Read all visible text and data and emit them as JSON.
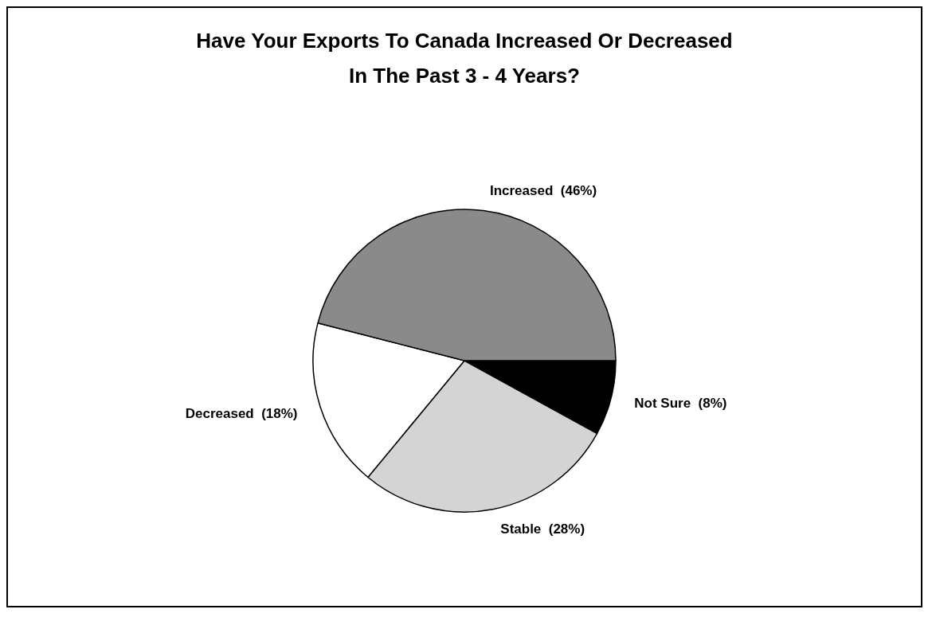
{
  "chart_data": {
    "type": "pie",
    "title": "Have Your Exports To Canada Increased Or Decreased\nIn The Past 3 - 4 Years?",
    "categories": [
      "Not Sure",
      "Stable",
      "Decreased",
      "Increased"
    ],
    "values": [
      8,
      28,
      18,
      46
    ],
    "value_labels": [
      "(8%)",
      "(28%)",
      "(18%)",
      "(46%)"
    ],
    "colors": [
      "#000000",
      "#d4d4d4",
      "#ffffff",
      "#8a8a8a"
    ],
    "legend": false
  }
}
